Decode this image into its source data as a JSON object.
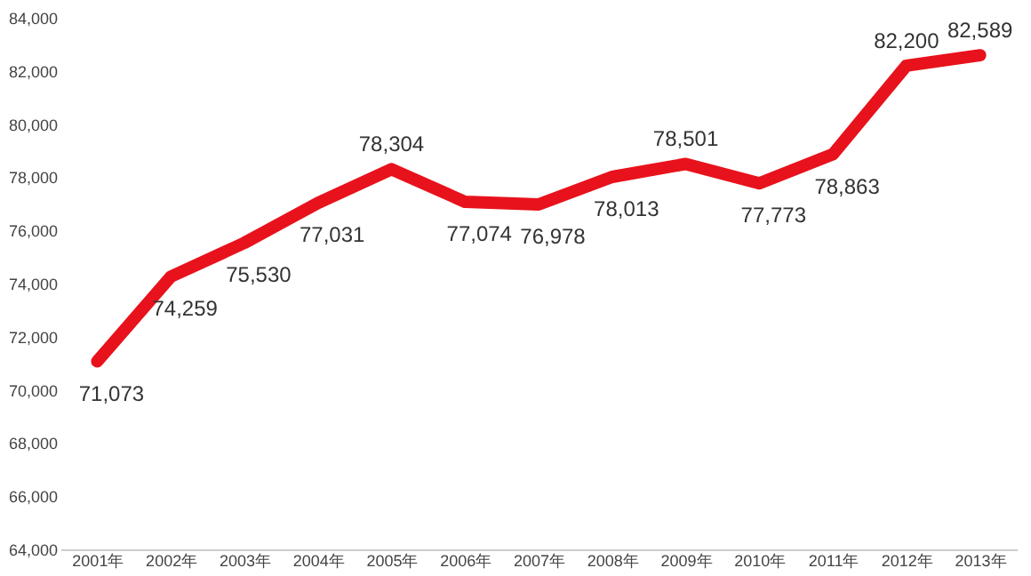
{
  "chart_data": {
    "type": "line",
    "categories": [
      "2001年",
      "2002年",
      "2003年",
      "2004年",
      "2005年",
      "2006年",
      "2007年",
      "2008年",
      "2009年",
      "2010年",
      "2011年",
      "2012年",
      "2013年"
    ],
    "series": [
      {
        "color": "#e8121c",
        "values": [
          71073,
          74259,
          75530,
          77031,
          78304,
          77074,
          76978,
          78013,
          78501,
          77773,
          78863,
          82200,
          82589
        ],
        "value_labels": [
          "71,073",
          "74,259",
          "75,530",
          "77,031",
          "78,304",
          "77,074",
          "76,978",
          "78,013",
          "78,501",
          "77,773",
          "78,863",
          "82,200",
          "82,589"
        ]
      }
    ],
    "ylim": [
      64000,
      84000
    ],
    "yticks": [
      {
        "value": 64000,
        "label": "64,000"
      },
      {
        "value": 66000,
        "label": "66,000"
      },
      {
        "value": 68000,
        "label": "68,000"
      },
      {
        "value": 70000,
        "label": "70,000"
      },
      {
        "value": 72000,
        "label": "72,000"
      },
      {
        "value": 74000,
        "label": "74,000"
      },
      {
        "value": 76000,
        "label": "76,000"
      },
      {
        "value": 78000,
        "label": "78,000"
      },
      {
        "value": 80000,
        "label": "80,000"
      },
      {
        "value": 82000,
        "label": "82,000"
      },
      {
        "value": 84000,
        "label": "84,000"
      }
    ],
    "grid": false,
    "marker": "none",
    "line_style": "solid"
  }
}
